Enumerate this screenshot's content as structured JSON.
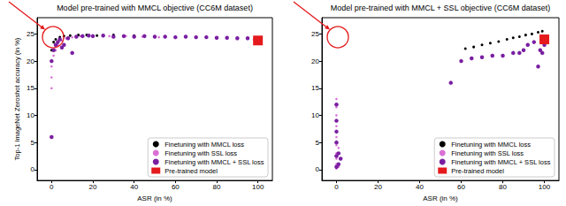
{
  "chart_data": [
    {
      "type": "scatter",
      "title": "Model pre-trained with MMCL objective (CC6M dataset)",
      "x_label": "ASR (in %)",
      "y_label": "Top-1 ImageNet Zeroshot accuracy (in %)",
      "xlim": [
        -7,
        107
      ],
      "xticks": [
        0,
        20,
        40,
        60,
        80,
        100
      ],
      "ylim": [
        -2,
        28
      ],
      "yticks": [
        0,
        5,
        10,
        15,
        20,
        25
      ],
      "grid": false,
      "legend": "lower right",
      "series": [
        {
          "name": "Finetuning with MMCL loss",
          "color": "#000000",
          "marker": "circle",
          "values": [
            [
              0,
              22
            ],
            [
              1,
              23.5
            ],
            [
              2,
              24
            ],
            [
              4,
              24.4
            ],
            [
              6,
              24.6
            ],
            [
              9,
              24.7
            ],
            [
              13,
              24.8
            ],
            [
              17,
              24.8
            ],
            [
              22,
              24.7
            ],
            [
              30,
              24.8
            ],
            [
              40,
              24.7
            ]
          ]
        },
        {
          "name": "Finetuning with SSL loss",
          "color": "#da70d6",
          "marker": "circle",
          "values": [
            [
              0,
              15
            ],
            [
              0,
              17
            ],
            [
              0,
              19
            ],
            [
              1,
              21
            ],
            [
              2,
              22
            ],
            [
              3,
              23
            ],
            [
              5,
              23.8
            ],
            [
              7,
              24.2
            ],
            [
              10,
              24.4
            ],
            [
              14,
              24.6
            ],
            [
              20,
              24.5
            ],
            [
              28,
              24.6
            ],
            [
              36,
              24.6
            ],
            [
              44,
              24.5
            ],
            [
              52,
              24.4
            ],
            [
              60,
              24.4
            ],
            [
              70,
              24.3
            ],
            [
              80,
              24.2
            ],
            [
              90,
              24.1
            ],
            [
              98,
              24
            ]
          ]
        },
        {
          "name": "Finetuning with MMCL + SSL loss",
          "color": "#7a1fa2",
          "marker": "circle",
          "values": [
            [
              0,
              6
            ],
            [
              0,
              20
            ],
            [
              1,
              22
            ],
            [
              2,
              23
            ],
            [
              3,
              23.5
            ],
            [
              4,
              24
            ],
            [
              5,
              22.5
            ],
            [
              6,
              23
            ],
            [
              8,
              24.2
            ],
            [
              10,
              21.5
            ],
            [
              12,
              24.5
            ],
            [
              15,
              24.6
            ],
            [
              18,
              24.7
            ],
            [
              20,
              24.6
            ],
            [
              25,
              24.7
            ],
            [
              30,
              24.5
            ],
            [
              35,
              24.6
            ],
            [
              40,
              24.5
            ],
            [
              45,
              24.6
            ],
            [
              50,
              24.5
            ],
            [
              55,
              24.5
            ],
            [
              60,
              24.4
            ],
            [
              65,
              24.5
            ],
            [
              70,
              24.4
            ],
            [
              75,
              24.4
            ],
            [
              80,
              24.3
            ],
            [
              85,
              24.3
            ],
            [
              90,
              24.2
            ],
            [
              95,
              24.2
            ],
            [
              99,
              24.1
            ]
          ]
        },
        {
          "name": "Pre-trained model",
          "color": "#e41a1c",
          "marker": "star",
          "values": [
            [
              100,
              23.8
            ]
          ]
        }
      ]
    },
    {
      "type": "scatter",
      "title": "Model pre-trained with MMCL + SSL objective (CC6M dataset)",
      "x_label": "ASR (in %)",
      "xlim": [
        -7,
        107
      ],
      "xticks": [
        0,
        20,
        40,
        60,
        80,
        100
      ],
      "ylim": [
        -2,
        28
      ],
      "yticks": [
        0,
        5,
        10,
        15,
        20,
        25
      ],
      "grid": false,
      "legend": "lower right",
      "series": [
        {
          "name": "Finetuning with MMCL loss",
          "color": "#000000",
          "marker": "circle",
          "values": [
            [
              62,
              22.3
            ],
            [
              66,
              22.6
            ],
            [
              70,
              23
            ],
            [
              74,
              23.3
            ],
            [
              78,
              23.6
            ],
            [
              82,
              24
            ],
            [
              85,
              24.3
            ],
            [
              88,
              24.5
            ],
            [
              91,
              24.8
            ],
            [
              94,
              25
            ],
            [
              97,
              25.3
            ],
            [
              99,
              25.5
            ]
          ]
        },
        {
          "name": "Finetuning with SSL loss",
          "color": "#da70d6",
          "marker": "circle",
          "values": [
            [
              0,
              0.2
            ],
            [
              0,
              1
            ],
            [
              0,
              2
            ],
            [
              0,
              3
            ],
            [
              0,
              4.5
            ],
            [
              0,
              6
            ],
            [
              0,
              8
            ],
            [
              0,
              10
            ],
            [
              0,
              11.5
            ],
            [
              0,
              13
            ],
            [
              1,
              0.5
            ],
            [
              1,
              4
            ]
          ]
        },
        {
          "name": "Finetuning with MMCL + SSL loss",
          "color": "#7a1fa2",
          "marker": "circle",
          "values": [
            [
              0,
              0.5
            ],
            [
              0,
              2.5
            ],
            [
              0,
              5
            ],
            [
              0,
              7
            ],
            [
              0,
              9
            ],
            [
              0,
              12
            ],
            [
              1,
              1
            ],
            [
              1,
              3
            ],
            [
              2,
              2
            ],
            [
              55,
              16
            ],
            [
              60,
              20
            ],
            [
              65,
              20.5
            ],
            [
              70,
              20.7
            ],
            [
              75,
              21
            ],
            [
              80,
              21
            ],
            [
              85,
              21.5
            ],
            [
              88,
              21.5
            ],
            [
              90,
              22
            ],
            [
              92,
              23
            ],
            [
              95,
              23.5
            ],
            [
              97,
              19
            ],
            [
              98,
              22
            ],
            [
              99,
              21.5
            ],
            [
              100,
              24.5
            ],
            [
              100,
              23
            ]
          ]
        },
        {
          "name": "Pre-trained model",
          "color": "#e41a1c",
          "marker": "star",
          "values": [
            [
              100,
              24
            ]
          ]
        }
      ]
    }
  ]
}
